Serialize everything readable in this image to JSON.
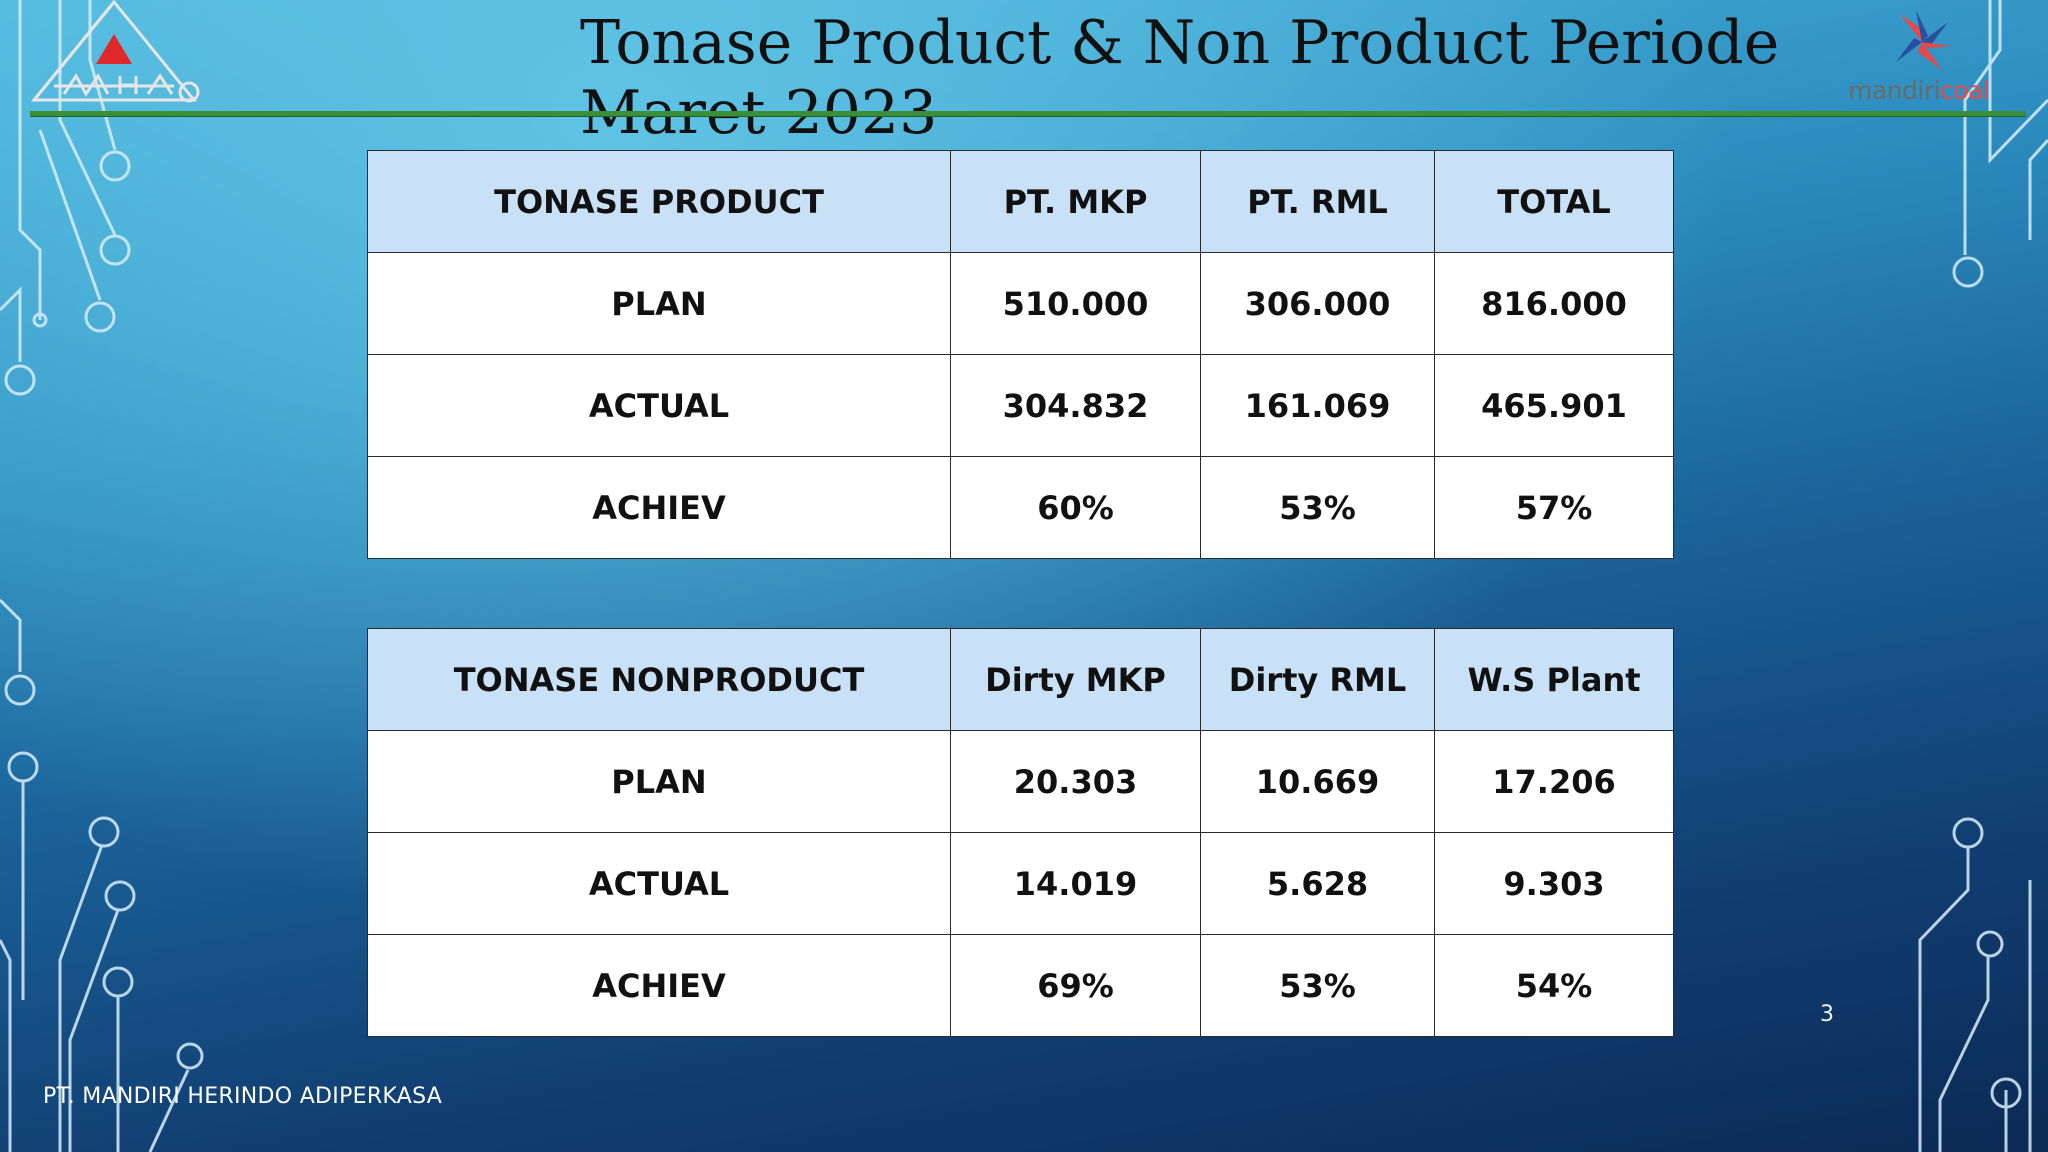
{
  "slide": {
    "title": "Tonase Product & Non Product  Periode Maret 2023",
    "page_number": "3",
    "footer": "PT. MANDIRI HERINDO ADIPERKASA"
  },
  "logos": {
    "left": {
      "text": "MHA"
    },
    "right": {
      "text_part1": "mandiri",
      "text_part2": "coal"
    }
  },
  "colors": {
    "header_fill": "#c8e1f6",
    "rule": "#3a8f3a",
    "logo_red": "#e84848"
  },
  "product_table": {
    "headers": [
      "TONASE PRODUCT",
      "PT. MKP",
      "PT. RML",
      "TOTAL"
    ],
    "rows": [
      [
        "PLAN",
        "510.000",
        "306.000",
        "816.000"
      ],
      [
        "ACTUAL",
        "304.832",
        "161.069",
        "465.901"
      ],
      [
        "ACHIEV",
        "60%",
        "53%",
        "57%"
      ]
    ]
  },
  "nonproduct_table": {
    "headers": [
      "TONASE NONPRODUCT",
      "Dirty MKP",
      "Dirty RML",
      "W.S Plant"
    ],
    "rows": [
      [
        "PLAN",
        "20.303",
        "10.669",
        "17.206"
      ],
      [
        "ACTUAL",
        "14.019",
        "5.628",
        "9.303"
      ],
      [
        "ACHIEV",
        "69%",
        "53%",
        "54%"
      ]
    ]
  }
}
